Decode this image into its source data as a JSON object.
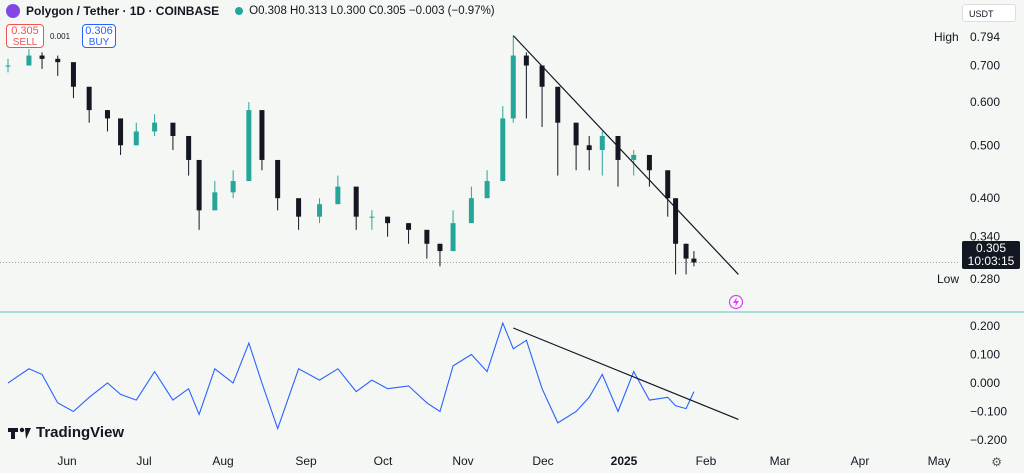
{
  "header": {
    "title": "Polygon / Tether · 1D · COINBASE",
    "ohlc": "O0.308 H0.313 L0.300 C0.305 −0.003 (−0.97%)"
  },
  "trade": {
    "sell_price": "0.305",
    "sell_label": "SELL",
    "buy_price": "0.306",
    "buy_label": "BUY",
    "spread": "0.001"
  },
  "currency": "USDT",
  "price_marker": {
    "value": "0.305",
    "countdown": "10:03:15"
  },
  "high_label": "High",
  "high_value": "0.794",
  "low_label": "Low",
  "low_value": "0.280",
  "branding": "TradingView",
  "colors": {
    "up": "#26a69a",
    "down": "#131722",
    "indicator": "#2962ff",
    "trendline": "#131722",
    "separator": "#5bc0be"
  },
  "chart_data": [
    {
      "type": "candlestick",
      "title": "Polygon / Tether · 1D · COINBASE",
      "yscale": "log",
      "ylim": [
        0.275,
        0.82
      ],
      "y_ticks": [
        "0.700",
        "0.600",
        "0.500",
        "0.400",
        "0.340"
      ],
      "x_ticks": [
        "Jun",
        "Jul",
        "Aug",
        "Sep",
        "Oct",
        "Nov",
        "Dec",
        "2025",
        "Feb",
        "Mar",
        "Apr",
        "May"
      ],
      "x_range": [
        "2024-05-24",
        "2025-05-15"
      ],
      "grid": false,
      "x": [
        "2024-05-24",
        "2024-06-01",
        "2024-06-06",
        "2024-06-12",
        "2024-06-18",
        "2024-06-24",
        "2024-07-01",
        "2024-07-06",
        "2024-07-12",
        "2024-07-19",
        "2024-07-26",
        "2024-08-01",
        "2024-08-05",
        "2024-08-11",
        "2024-08-18",
        "2024-08-24",
        "2024-08-29",
        "2024-09-04",
        "2024-09-12",
        "2024-09-20",
        "2024-09-27",
        "2024-10-04",
        "2024-10-10",
        "2024-10-16",
        "2024-10-24",
        "2024-10-31",
        "2024-11-05",
        "2024-11-10",
        "2024-11-17",
        "2024-11-23",
        "2024-11-29",
        "2024-12-03",
        "2024-12-08",
        "2024-12-14",
        "2024-12-20",
        "2024-12-27",
        "2025-01-01",
        "2025-01-06",
        "2025-01-12",
        "2025-01-18",
        "2025-01-24",
        "2025-01-31",
        "2025-02-03",
        "2025-02-07",
        "2025-02-10"
      ],
      "close": [
        0.7,
        0.73,
        0.72,
        0.71,
        0.64,
        0.58,
        0.56,
        0.5,
        0.53,
        0.55,
        0.52,
        0.47,
        0.38,
        0.41,
        0.43,
        0.58,
        0.47,
        0.4,
        0.37,
        0.39,
        0.42,
        0.37,
        0.37,
        0.36,
        0.35,
        0.33,
        0.32,
        0.36,
        0.4,
        0.43,
        0.56,
        0.73,
        0.7,
        0.64,
        0.55,
        0.5,
        0.49,
        0.52,
        0.47,
        0.48,
        0.45,
        0.4,
        0.33,
        0.31,
        0.305
      ],
      "high": [
        0.72,
        0.75,
        0.74,
        0.73,
        0.66,
        0.6,
        0.58,
        0.53,
        0.55,
        0.57,
        0.54,
        0.49,
        0.4,
        0.43,
        0.45,
        0.6,
        0.5,
        0.42,
        0.38,
        0.4,
        0.44,
        0.38,
        0.38,
        0.37,
        0.36,
        0.34,
        0.33,
        0.38,
        0.42,
        0.45,
        0.59,
        0.794,
        0.74,
        0.67,
        0.58,
        0.53,
        0.52,
        0.53,
        0.5,
        0.49,
        0.47,
        0.42,
        0.36,
        0.33,
        0.32
      ],
      "low": [
        0.68,
        0.7,
        0.69,
        0.67,
        0.61,
        0.55,
        0.53,
        0.48,
        0.5,
        0.52,
        0.49,
        0.44,
        0.35,
        0.38,
        0.4,
        0.44,
        0.45,
        0.38,
        0.35,
        0.36,
        0.39,
        0.35,
        0.35,
        0.34,
        0.33,
        0.31,
        0.3,
        0.33,
        0.37,
        0.4,
        0.43,
        0.55,
        0.56,
        0.54,
        0.44,
        0.45,
        0.45,
        0.44,
        0.42,
        0.44,
        0.42,
        0.37,
        0.29,
        0.29,
        0.3
      ],
      "high_marker": 0.794,
      "low_marker": 0.28,
      "last_price": 0.305,
      "trendline": [
        [
          "2024-12-03",
          0.794
        ],
        [
          "2025-02-27",
          0.29
        ]
      ]
    },
    {
      "type": "line",
      "ylim": [
        -0.2,
        0.2
      ],
      "y_ticks": [
        "0.200",
        "0.100",
        "0.000",
        "−0.100",
        "−0.200"
      ],
      "x": [
        "2024-05-24",
        "2024-06-01",
        "2024-06-06",
        "2024-06-12",
        "2024-06-18",
        "2024-06-24",
        "2024-07-01",
        "2024-07-06",
        "2024-07-12",
        "2024-07-19",
        "2024-07-26",
        "2024-08-01",
        "2024-08-05",
        "2024-08-11",
        "2024-08-18",
        "2024-08-24",
        "2024-08-29",
        "2024-09-04",
        "2024-09-12",
        "2024-09-20",
        "2024-09-27",
        "2024-10-04",
        "2024-10-10",
        "2024-10-16",
        "2024-10-24",
        "2024-10-31",
        "2024-11-05",
        "2024-11-10",
        "2024-11-17",
        "2024-11-23",
        "2024-11-29",
        "2024-12-03",
        "2024-12-08",
        "2024-12-14",
        "2024-12-20",
        "2024-12-27",
        "2025-01-01",
        "2025-01-06",
        "2025-01-12",
        "2025-01-18",
        "2025-01-24",
        "2025-01-31",
        "2025-02-03",
        "2025-02-07",
        "2025-02-10"
      ],
      "values": [
        0.0,
        0.05,
        0.03,
        -0.07,
        -0.1,
        -0.05,
        0.0,
        -0.04,
        -0.06,
        0.04,
        -0.06,
        -0.02,
        -0.11,
        0.05,
        0.0,
        0.14,
        0.0,
        -0.16,
        0.05,
        0.01,
        0.05,
        -0.03,
        0.01,
        -0.02,
        -0.01,
        -0.07,
        -0.1,
        0.06,
        0.1,
        0.04,
        0.21,
        0.12,
        0.15,
        -0.02,
        -0.14,
        -0.1,
        -0.05,
        0.03,
        -0.1,
        0.04,
        -0.06,
        -0.05,
        -0.08,
        -0.09,
        -0.03
      ],
      "trendline": [
        [
          "2024-12-03",
          0.193
        ],
        [
          "2025-02-27",
          -0.128
        ]
      ]
    }
  ]
}
